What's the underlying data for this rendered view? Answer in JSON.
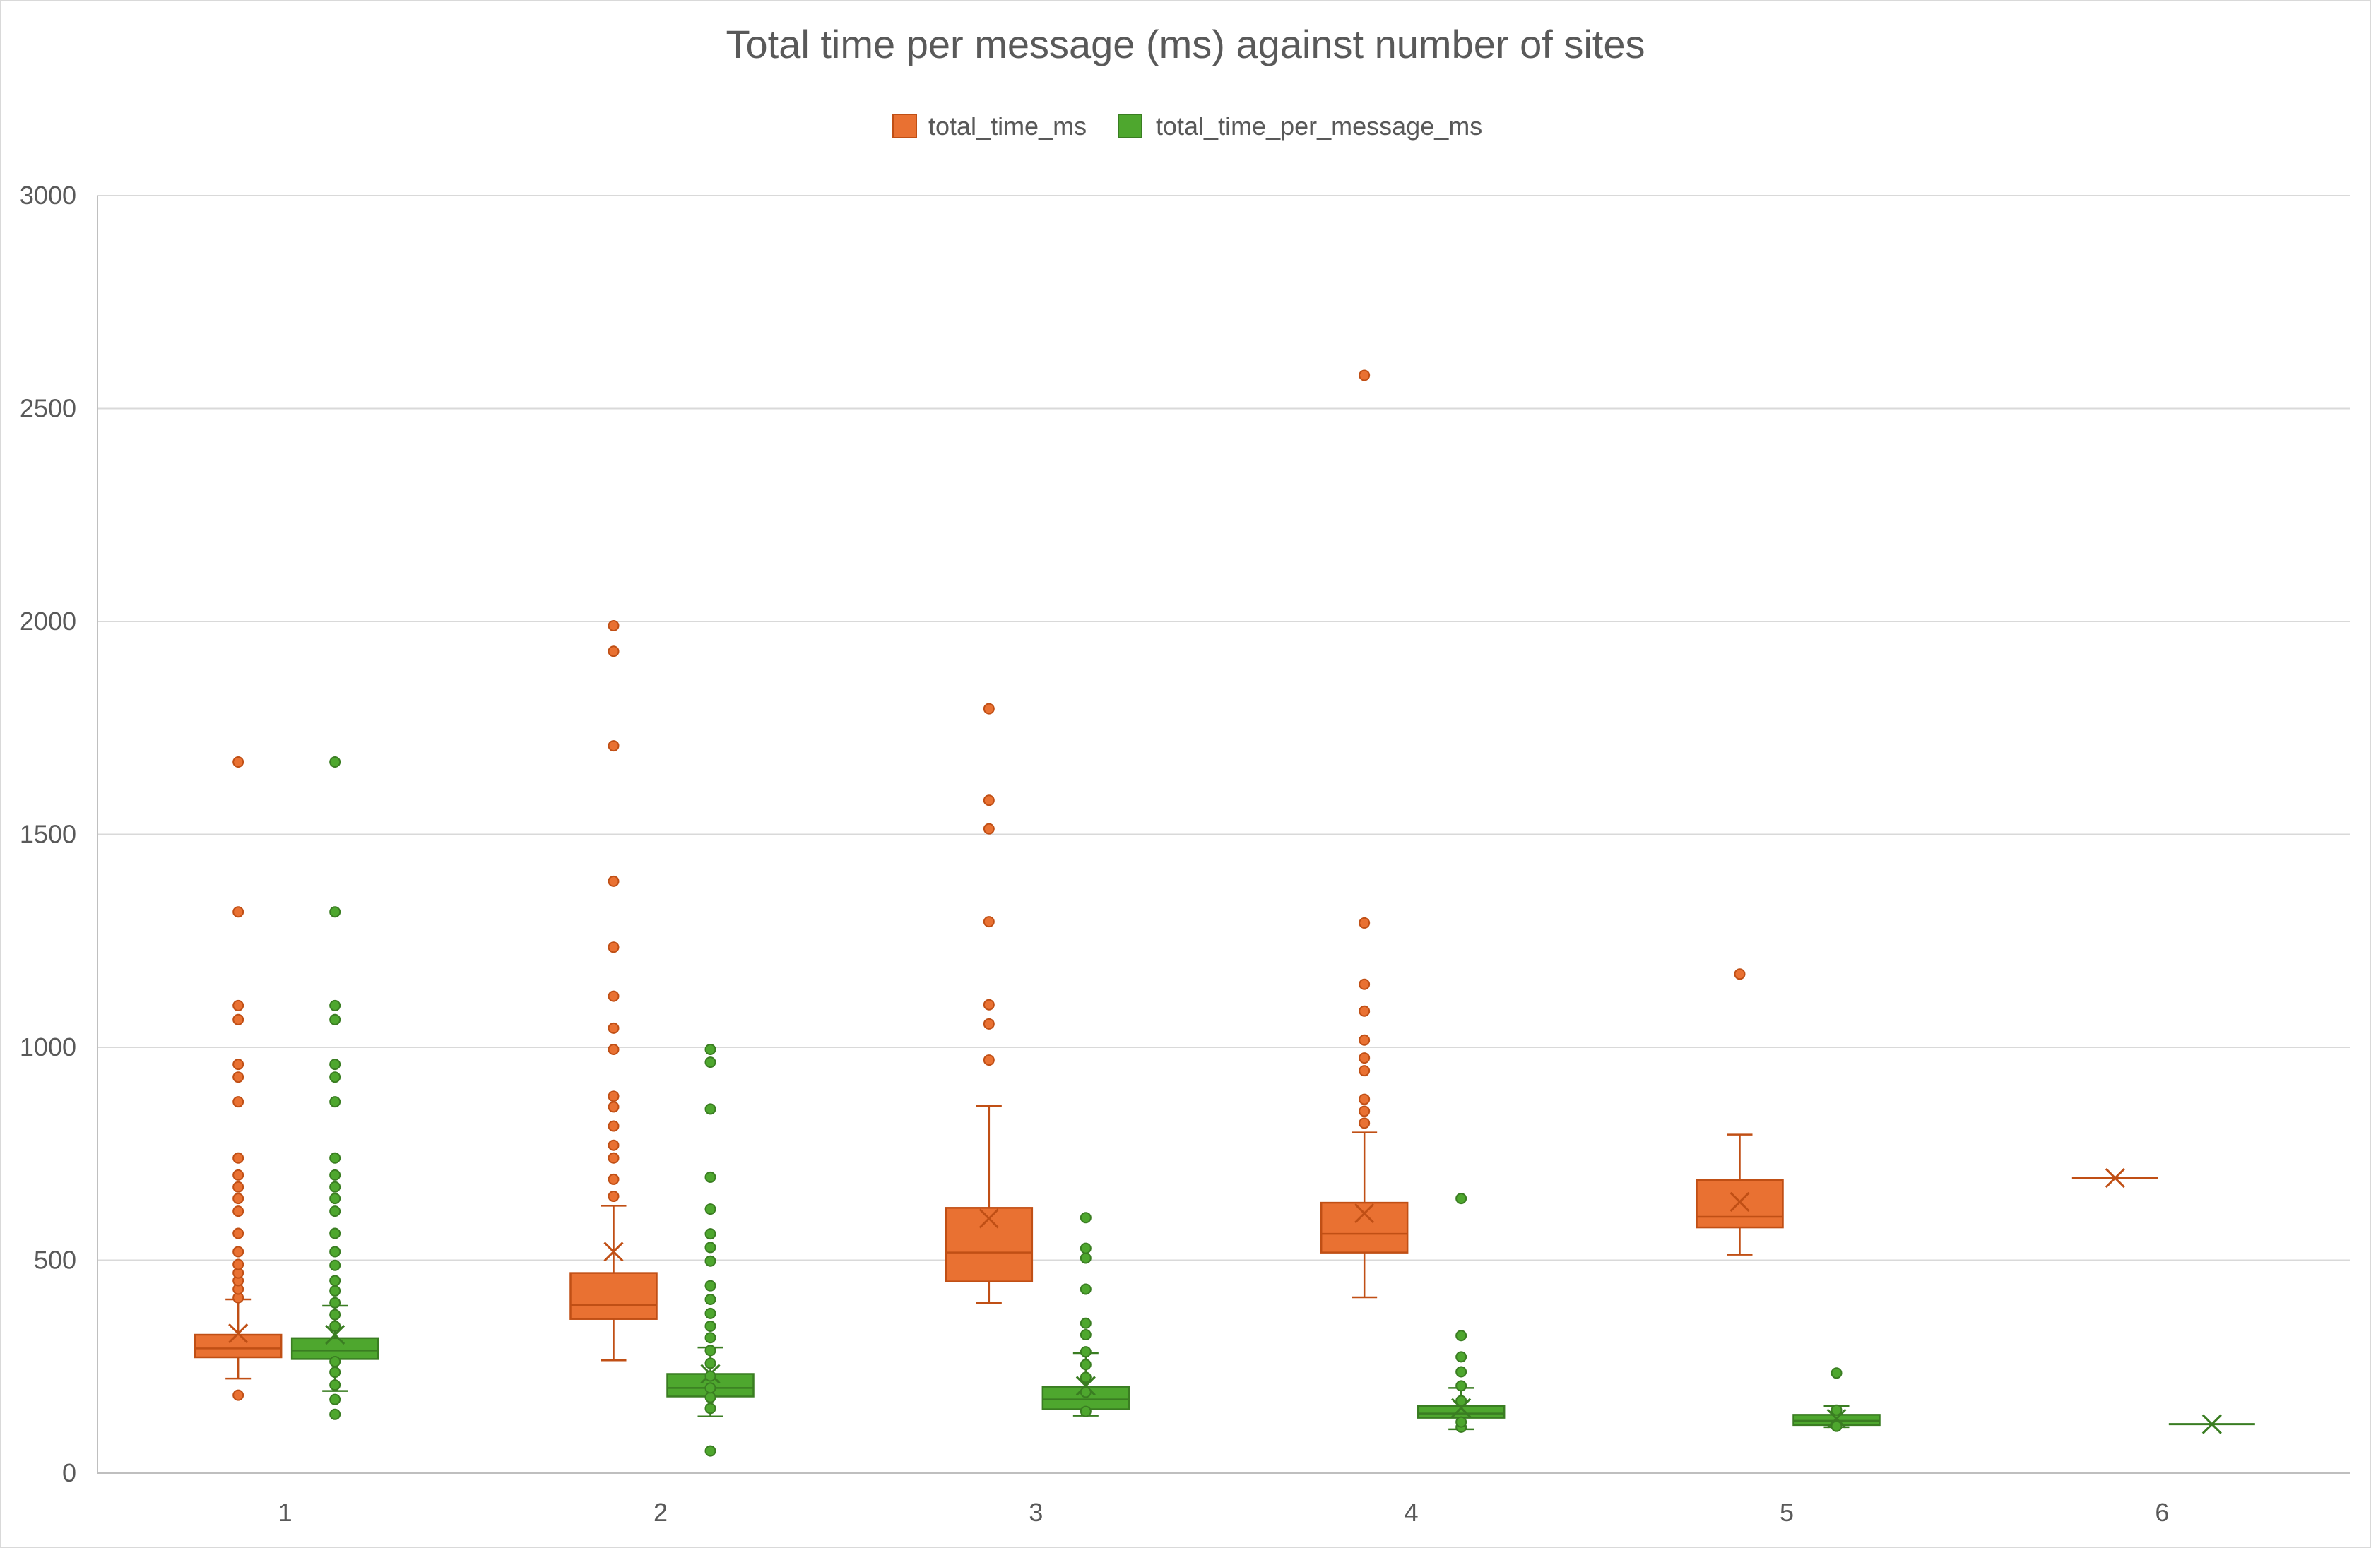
{
  "chart_data": {
    "type": "box",
    "title": "Total time per message (ms) against number of sites",
    "xlabel": "",
    "ylabel": "",
    "categories": [
      "1",
      "2",
      "3",
      "4",
      "5",
      "6"
    ],
    "ylim": [
      0,
      3000
    ],
    "y_ticks": [
      "0",
      "500",
      "1000",
      "1500",
      "2000",
      "2500",
      "3000"
    ],
    "grid": true,
    "legend_position": "top",
    "series": [
      {
        "name": "total_time_ms",
        "color": "#E97132",
        "boxes": [
          {
            "category": "1",
            "min": 222,
            "q1": 272,
            "median": 293,
            "q3": 325,
            "max": 408,
            "mean": 328,
            "outliers": [
              183,
              412,
              432,
              452,
              470,
              490,
              520,
              563,
              615,
              645,
              672,
              700,
              740,
              872,
              930,
              960,
              1065,
              1098,
              1318,
              1670
            ]
          },
          {
            "category": "2",
            "min": 265,
            "q1": 362,
            "median": 395,
            "q3": 470,
            "max": 628,
            "mean": 520,
            "outliers": [
              650,
              690,
              740,
              770,
              815,
              860,
              885,
              995,
              1045,
              1120,
              1235,
              1390,
              1708,
              1930,
              1990
            ]
          },
          {
            "category": "3",
            "min": 400,
            "q1": 450,
            "median": 518,
            "q3": 623,
            "max": 862,
            "mean": 598,
            "outliers": [
              970,
              1055,
              1100,
              1295,
              1513,
              1580,
              1795
            ]
          },
          {
            "category": "4",
            "min": 413,
            "q1": 518,
            "median": 562,
            "q3": 635,
            "max": 800,
            "mean": 610,
            "outliers": [
              822,
              850,
              878,
              945,
              975,
              1017,
              1085,
              1148,
              1292,
              2578
            ]
          },
          {
            "category": "5",
            "min": 513,
            "q1": 577,
            "median": 602,
            "q3": 688,
            "max": 795,
            "mean": 637,
            "outliers": [
              1172
            ]
          },
          {
            "category": "6",
            "min": 693,
            "q1": 693,
            "median": 693,
            "q3": 693,
            "max": 693,
            "mean": 693,
            "outliers": []
          }
        ]
      },
      {
        "name": "total_time_per_message_ms",
        "color": "#4EA72E",
        "boxes": [
          {
            "category": "1",
            "min": 193,
            "q1": 268,
            "median": 288,
            "q3": 317,
            "max": 393,
            "mean": 325,
            "outliers": [
              138,
              173,
              207,
              237,
              262,
              345,
              372,
              400,
              428,
              452,
              488,
              520,
              563,
              615,
              645,
              672,
              700,
              740,
              872,
              930,
              960,
              1065,
              1098,
              1318,
              1670
            ]
          },
          {
            "category": "2",
            "min": 133,
            "q1": 180,
            "median": 200,
            "q3": 233,
            "max": 295,
            "mean": 233,
            "outliers": [
              52,
              152,
              178,
              200,
              228,
              258,
              288,
              318,
              345,
              375,
              408,
              440,
              498,
              530,
              562,
              620,
              695,
              855,
              965,
              995
            ]
          },
          {
            "category": "3",
            "min": 135,
            "q1": 150,
            "median": 173,
            "q3": 203,
            "max": 282,
            "mean": 205,
            "outliers": [
              145,
              190,
              225,
              255,
              285,
              325,
              352,
              432,
              505,
              528,
              600
            ]
          },
          {
            "category": "4",
            "min": 103,
            "q1": 130,
            "median": 140,
            "q3": 158,
            "max": 200,
            "mean": 153,
            "outliers": [
              108,
              120,
              170,
              205,
              238,
              273,
              323,
              645
            ]
          },
          {
            "category": "5",
            "min": 108,
            "q1": 113,
            "median": 123,
            "q3": 137,
            "max": 158,
            "mean": 128,
            "outliers": [
              110,
              148,
              235
            ]
          },
          {
            "category": "6",
            "min": 115,
            "q1": 115,
            "median": 115,
            "q3": 115,
            "max": 115,
            "mean": 115,
            "outliers": []
          }
        ]
      }
    ]
  }
}
